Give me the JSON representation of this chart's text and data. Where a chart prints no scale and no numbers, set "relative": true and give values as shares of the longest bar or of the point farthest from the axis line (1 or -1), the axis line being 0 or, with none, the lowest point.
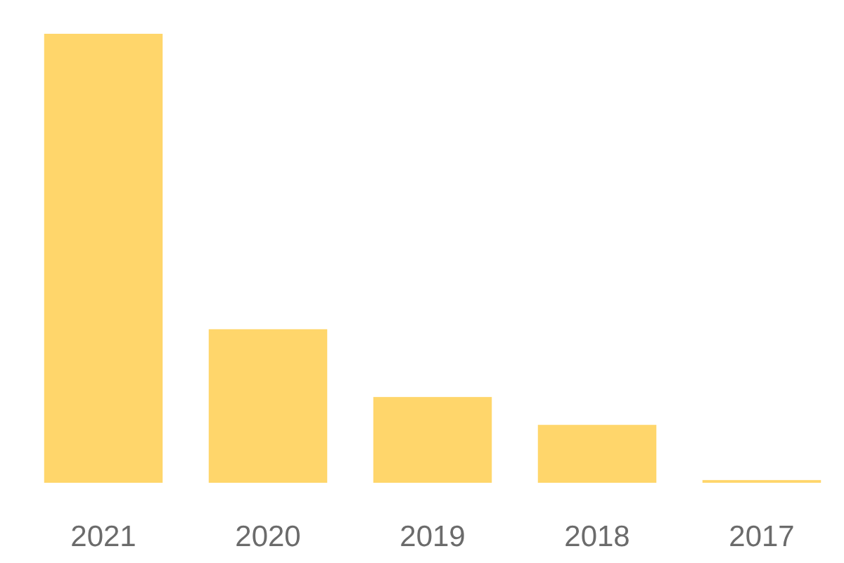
{
  "chart_data": {
    "type": "bar",
    "relative": true,
    "categories": [
      "2021",
      "2020",
      "2019",
      "2018",
      "2017"
    ],
    "values": [
      1,
      0.342,
      0.191,
      0.129,
      0.006
    ],
    "color": "#ffd66b"
  }
}
